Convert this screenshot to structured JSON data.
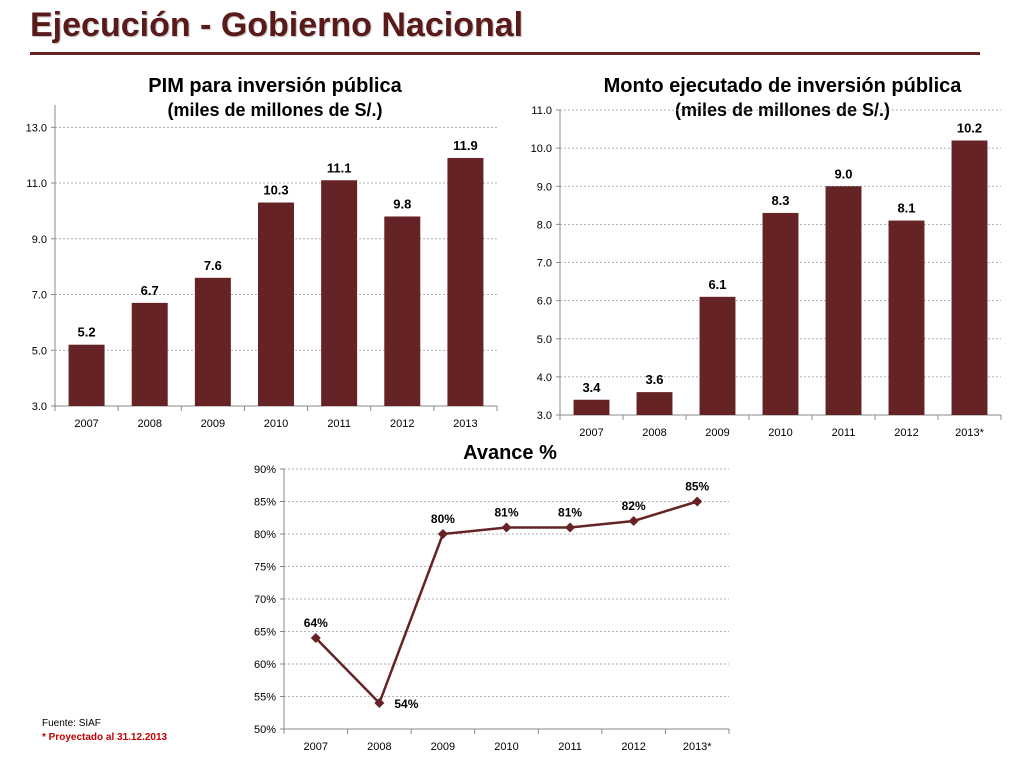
{
  "page": {
    "title": "Ejecución - Gobierno Nacional",
    "source_note": "Fuente: SIAF",
    "projection_note": "* Proyectado al 31.12.2013"
  },
  "colors": {
    "bar": "#652325",
    "line": "#652325",
    "title": "#5a1a1a",
    "note_red": "#c00000"
  },
  "chart_data": [
    {
      "id": "pim",
      "type": "bar",
      "title": "PIM para inversión pública",
      "subtitle": "(miles de millones de S/.)",
      "categories": [
        "2007",
        "2008",
        "2009",
        "2010",
        "2011",
        "2012",
        "2013"
      ],
      "values": [
        5.2,
        6.7,
        7.6,
        10.3,
        11.1,
        9.8,
        11.9
      ],
      "value_labels": [
        "5.2",
        "6.7",
        "7.6",
        "10.3",
        "11.1",
        "9.8",
        "11.9"
      ],
      "ylim": [
        3.0,
        13.8
      ],
      "yticks": [
        3.0,
        5.0,
        7.0,
        9.0,
        11.0,
        13.0
      ],
      "ytick_labels": [
        "3.0",
        "5.0",
        "7.0",
        "9.0",
        "11.0",
        "13.0"
      ],
      "grid": true,
      "legend": "none"
    },
    {
      "id": "monto",
      "type": "bar",
      "title": "Monto ejecutado de inversión pública",
      "subtitle": "(miles de millones de S/.)",
      "categories": [
        "2007",
        "2008",
        "2009",
        "2010",
        "2011",
        "2012",
        "2013*"
      ],
      "values": [
        3.4,
        3.6,
        6.1,
        8.3,
        9.0,
        8.1,
        10.2
      ],
      "value_labels": [
        "3.4",
        "3.6",
        "6.1",
        "8.3",
        "9.0",
        "8.1",
        "10.2"
      ],
      "ylim": [
        3.0,
        11.0
      ],
      "yticks": [
        3.0,
        4.0,
        5.0,
        6.0,
        7.0,
        8.0,
        9.0,
        10.0,
        11.0
      ],
      "ytick_labels": [
        "3.0",
        "4.0",
        "5.0",
        "6.0",
        "7.0",
        "8.0",
        "9.0",
        "10.0",
        "11.0"
      ],
      "grid": true,
      "legend": "none"
    },
    {
      "id": "avance",
      "type": "line",
      "title": "Avance %",
      "categories": [
        "2007",
        "2008",
        "2009",
        "2010",
        "2011",
        "2012",
        "2013*"
      ],
      "values": [
        64,
        54,
        80,
        81,
        81,
        82,
        85
      ],
      "value_labels": [
        "64%",
        "54%",
        "80%",
        "81%",
        "81%",
        "82%",
        "85%"
      ],
      "ylim": [
        50,
        90
      ],
      "yticks": [
        50,
        55,
        60,
        65,
        70,
        75,
        80,
        85,
        90
      ],
      "ytick_labels": [
        "50%",
        "55%",
        "60%",
        "65%",
        "70%",
        "75%",
        "80%",
        "85%",
        "90%"
      ],
      "grid": true,
      "legend": "none"
    }
  ]
}
